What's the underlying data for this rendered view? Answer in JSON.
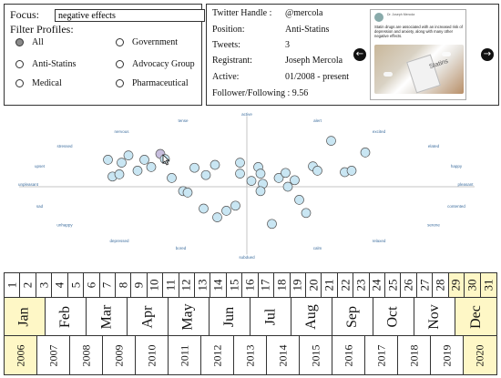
{
  "filter": {
    "focus_label": "Focus:",
    "focus_value": "negative effects",
    "title": "Filter Profiles:",
    "options": [
      {
        "label": "All",
        "selected": true
      },
      {
        "label": "Government",
        "selected": false
      },
      {
        "label": "Anti-Statins",
        "selected": false
      },
      {
        "label": "Advocacy Group",
        "selected": false
      },
      {
        "label": "Medical",
        "selected": false
      },
      {
        "label": "Pharmaceutical",
        "selected": false
      }
    ]
  },
  "profile": {
    "rows": [
      {
        "label": "Twitter Handle :",
        "value": "@mercola"
      },
      {
        "label": "Position:",
        "value": "Anti-Statins"
      },
      {
        "label": "Tweets:",
        "value": "3"
      },
      {
        "label": "Registrant:",
        "value": "Joseph Mercola"
      },
      {
        "label": "Active:",
        "value": "01/2008 - present"
      }
    ],
    "follower_following": "Follower/Following : 9.56",
    "prev_icon": "arrow-left-icon",
    "next_icon": "arrow-right-icon"
  },
  "tweet": {
    "author": "Dr. Joseph Mercola",
    "text": "Statin drugs are associated with an increased risk of depression and anxiety, along with many other negative effects.",
    "image_label": "Statins"
  },
  "chart_data": {
    "type": "scatter",
    "xlim": [
      -1,
      1
    ],
    "ylim": [
      -1,
      1
    ],
    "grid": false,
    "axis_labels": [
      {
        "text": "active",
        "x": 0,
        "y": 1.0
      },
      {
        "text": "tense",
        "x": -0.28,
        "y": 0.91
      },
      {
        "text": "alert",
        "x": 0.31,
        "y": 0.91
      },
      {
        "text": "nervous",
        "x": -0.55,
        "y": 0.76
      },
      {
        "text": "excited",
        "x": 0.58,
        "y": 0.76
      },
      {
        "text": "stressed",
        "x": -0.8,
        "y": 0.56
      },
      {
        "text": "elated",
        "x": 0.82,
        "y": 0.56
      },
      {
        "text": "upset",
        "x": -0.91,
        "y": 0.29
      },
      {
        "text": "happy",
        "x": 0.92,
        "y": 0.29
      },
      {
        "text": "unpleasant",
        "x": -0.96,
        "y": 0.04
      },
      {
        "text": "pleasant",
        "x": 0.96,
        "y": 0.04
      },
      {
        "text": "sad",
        "x": -0.91,
        "y": -0.26
      },
      {
        "text": "contented",
        "x": 0.92,
        "y": -0.26
      },
      {
        "text": "unhappy",
        "x": -0.8,
        "y": -0.52
      },
      {
        "text": "serene",
        "x": 0.82,
        "y": -0.52
      },
      {
        "text": "depressed",
        "x": -0.56,
        "y": -0.74
      },
      {
        "text": "relaxed",
        "x": 0.58,
        "y": -0.74
      },
      {
        "text": "bored",
        "x": -0.29,
        "y": -0.84
      },
      {
        "text": "calm",
        "x": 0.31,
        "y": -0.84
      },
      {
        "text": "subdued",
        "x": 0,
        "y": -0.96
      }
    ],
    "points": [
      {
        "x": -0.61,
        "y": 0.37
      },
      {
        "x": -0.55,
        "y": 0.33
      },
      {
        "x": -0.52,
        "y": 0.43
      },
      {
        "x": -0.59,
        "y": 0.14
      },
      {
        "x": -0.56,
        "y": 0.17
      },
      {
        "x": -0.48,
        "y": 0.22
      },
      {
        "x": -0.45,
        "y": 0.37
      },
      {
        "x": -0.42,
        "y": 0.27
      },
      {
        "x": -0.33,
        "y": 0.12
      },
      {
        "x": -0.38,
        "y": 0.45,
        "highlighted": true
      },
      {
        "x": -0.36,
        "y": 0.38
      },
      {
        "x": -0.28,
        "y": -0.06
      },
      {
        "x": -0.26,
        "y": -0.08
      },
      {
        "x": -0.23,
        "y": 0.26
      },
      {
        "x": -0.18,
        "y": 0.16
      },
      {
        "x": -0.19,
        "y": -0.3
      },
      {
        "x": -0.13,
        "y": -0.42
      },
      {
        "x": -0.09,
        "y": -0.33
      },
      {
        "x": -0.05,
        "y": -0.26
      },
      {
        "x": -0.14,
        "y": 0.3
      },
      {
        "x": -0.03,
        "y": 0.18
      },
      {
        "x": -0.03,
        "y": 0.33
      },
      {
        "x": 0.05,
        "y": 0.27
      },
      {
        "x": 0.02,
        "y": 0.08
      },
      {
        "x": 0.06,
        "y": 0.18
      },
      {
        "x": 0.07,
        "y": 0.04
      },
      {
        "x": 0.06,
        "y": -0.06
      },
      {
        "x": 0.11,
        "y": -0.51
      },
      {
        "x": 0.14,
        "y": 0.12
      },
      {
        "x": 0.17,
        "y": 0.19
      },
      {
        "x": 0.18,
        "y": 0.0
      },
      {
        "x": 0.21,
        "y": 0.09
      },
      {
        "x": 0.23,
        "y": -0.18
      },
      {
        "x": 0.26,
        "y": -0.36
      },
      {
        "x": 0.29,
        "y": 0.28
      },
      {
        "x": 0.31,
        "y": 0.22
      },
      {
        "x": 0.37,
        "y": 0.63
      },
      {
        "x": 0.43,
        "y": 0.2
      },
      {
        "x": 0.46,
        "y": 0.22
      },
      {
        "x": 0.52,
        "y": 0.47
      }
    ]
  },
  "timeline": {
    "days": [
      "1",
      "2",
      "3",
      "4",
      "5",
      "6",
      "7",
      "8",
      "9",
      "10",
      "11",
      "12",
      "13",
      "14",
      "15",
      "16",
      "17",
      "18",
      "19",
      "20",
      "21",
      "22",
      "23",
      "24",
      "25",
      "26",
      "27",
      "28",
      "29",
      "30",
      "31"
    ],
    "selected_days": [
      "29",
      "30",
      "31"
    ],
    "months": [
      "Jan",
      "Feb",
      "Mar",
      "Apr",
      "May",
      "Jun",
      "Jul",
      "Aug",
      "Sep",
      "Oct",
      "Nov",
      "Dec"
    ],
    "selected_months": [
      "Jan",
      "Dec"
    ],
    "years": [
      "2006",
      "2007",
      "2008",
      "2009",
      "2010",
      "2011",
      "2012",
      "2013",
      "2014",
      "2015",
      "2016",
      "2017",
      "2018",
      "2019",
      "2020"
    ],
    "selected_years": [
      "2006",
      "2020"
    ]
  },
  "colors": {
    "point_fill": "#c9e6f3",
    "point_stroke": "#555555",
    "point_highlight": "#c7bede",
    "axis_label": "#3f6f9f",
    "timeline_selected": "#fef7c6"
  }
}
